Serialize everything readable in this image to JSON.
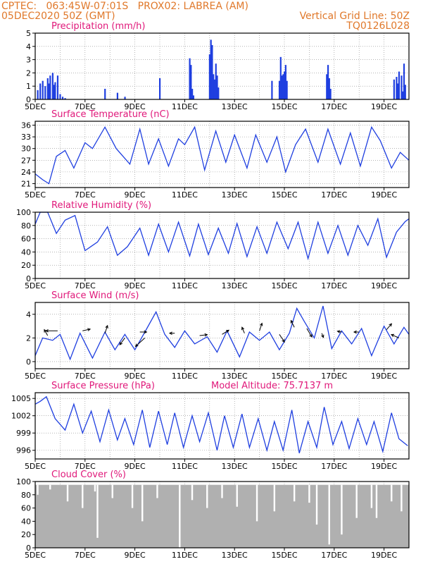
{
  "header": {
    "line1_left": "CPTEC:   063:45W-07:01S   PROX02: LABREA (AM)",
    "line2_left": "05DEC2020 50Z (GMT)",
    "line2_right": "Vertical Grid Line: 50Z",
    "line3_right": "TQ0126L028",
    "color": "#e0782a"
  },
  "colors": {
    "title": "#e0187a",
    "line": "#1f3fe0",
    "bar": "#1f3fe0",
    "cloud": "#b0b0b0",
    "grid": "#888888"
  },
  "x_tick_labels": [
    "5DEC",
    "7DEC",
    "9DEC",
    "11DEC",
    "13DEC",
    "15DEC",
    "17DEC",
    "19DEC"
  ],
  "x_range_days": [
    5,
    20
  ],
  "chart_data": [
    {
      "type": "bar",
      "title": "Precipitation (mm/h)",
      "ylim": [
        0,
        5
      ],
      "yticks": [
        "0",
        "1",
        "2",
        "3",
        "4",
        "5"
      ],
      "x": [
        5.1,
        5.2,
        5.3,
        5.4,
        5.5,
        5.55,
        5.6,
        5.7,
        5.75,
        5.8,
        5.9,
        6.0,
        6.1,
        6.2,
        7.8,
        8.3,
        8.6,
        10.0,
        11.2,
        11.25,
        11.3,
        11.35,
        12.0,
        12.05,
        12.1,
        12.15,
        12.2,
        12.25,
        12.3,
        12.35,
        14.5,
        14.8,
        14.85,
        14.9,
        14.95,
        15.0,
        15.05,
        15.1,
        16.7,
        16.75,
        16.8,
        16.85,
        19.4,
        19.5,
        19.55,
        19.6,
        19.7,
        19.75,
        19.8,
        19.85
      ],
      "values": [
        0.7,
        1.2,
        1.4,
        1.0,
        1.6,
        1.2,
        1.8,
        2.0,
        1.1,
        1.3,
        1.8,
        0.4,
        0.2,
        0.1,
        0.8,
        0.5,
        0.2,
        1.6,
        3.1,
        2.6,
        0.8,
        0.3,
        3.4,
        4.5,
        4.1,
        1.9,
        1.5,
        2.7,
        1.8,
        0.9,
        1.4,
        1.4,
        3.2,
        1.8,
        1.9,
        2.1,
        2.6,
        1.4,
        1.9,
        2.6,
        1.6,
        0.8,
        1.5,
        1.7,
        1.2,
        2.1,
        1.8,
        0.6,
        2.7,
        1.1
      ]
    },
    {
      "type": "line",
      "title": "Surface Temperature (nC)",
      "ylim": [
        20,
        37
      ],
      "yticks": [
        "21",
        "24",
        "27",
        "30",
        "33",
        "36"
      ],
      "x": [
        5.0,
        5.3,
        5.55,
        5.85,
        6.2,
        6.55,
        7.0,
        7.3,
        7.8,
        8.25,
        8.8,
        9.2,
        9.55,
        9.95,
        10.35,
        10.75,
        11.0,
        11.4,
        11.8,
        12.25,
        12.65,
        13.0,
        13.5,
        13.85,
        14.3,
        14.7,
        15.05,
        15.45,
        15.85,
        16.35,
        16.75,
        17.25,
        17.65,
        18.05,
        18.5,
        18.85,
        19.3,
        19.65,
        20.0
      ],
      "values": [
        23.5,
        22.0,
        21.0,
        28.0,
        29.5,
        25.0,
        31.5,
        30.0,
        35.5,
        30.0,
        26.0,
        35.0,
        26.0,
        32.5,
        25.5,
        32.5,
        31.0,
        35.5,
        24.5,
        34.5,
        26.5,
        33.5,
        25.0,
        33.5,
        26.5,
        33.0,
        24.0,
        31.0,
        35.0,
        26.5,
        35.0,
        26.0,
        34.0,
        25.5,
        35.5,
        32.0,
        25.0,
        29.0,
        27.0
      ]
    },
    {
      "type": "line",
      "title": "Relative Humidity (%)",
      "ylim": [
        0,
        100
      ],
      "yticks": [
        "0",
        "20",
        "40",
        "60",
        "80",
        "100"
      ],
      "x": [
        5.0,
        5.2,
        5.5,
        5.85,
        6.2,
        6.6,
        7.0,
        7.5,
        7.9,
        8.3,
        8.7,
        9.2,
        9.55,
        9.95,
        10.35,
        10.75,
        11.2,
        11.55,
        11.95,
        12.35,
        12.75,
        13.1,
        13.5,
        13.9,
        14.3,
        14.7,
        15.15,
        15.55,
        15.95,
        16.35,
        16.75,
        17.15,
        17.55,
        17.95,
        18.35,
        18.75,
        19.1,
        19.5,
        19.85,
        20.0
      ],
      "values": [
        82,
        100,
        100,
        68,
        88,
        95,
        42,
        55,
        78,
        35,
        48,
        76,
        35,
        82,
        40,
        85,
        34,
        82,
        36,
        76,
        38,
        83,
        33,
        78,
        38,
        85,
        45,
        85,
        30,
        85,
        38,
        80,
        35,
        80,
        50,
        90,
        32,
        70,
        86,
        90
      ]
    },
    {
      "type": "line",
      "title": "Surface Wind (m/s)",
      "ylim": [
        -0.6,
        5
      ],
      "yticks": [
        "0",
        "2",
        "4"
      ],
      "x": [
        5.0,
        5.3,
        5.7,
        6.0,
        6.4,
        6.8,
        7.3,
        7.8,
        8.2,
        8.6,
        9.0,
        9.4,
        9.85,
        10.2,
        10.6,
        11.0,
        11.4,
        11.9,
        12.3,
        12.7,
        13.2,
        13.6,
        14.0,
        14.4,
        14.8,
        15.2,
        15.5,
        15.8,
        16.2,
        16.55,
        16.9,
        17.3,
        17.7,
        18.1,
        18.5,
        19.0,
        19.4,
        19.8,
        20.0
      ],
      "values": [
        0.5,
        2.0,
        1.8,
        2.3,
        0.2,
        2.4,
        0.3,
        2.5,
        1.0,
        2.3,
        1.0,
        2.5,
        4.2,
        2.3,
        1.2,
        2.6,
        1.5,
        2.1,
        0.8,
        2.6,
        0.4,
        2.5,
        1.8,
        2.5,
        1.0,
        2.4,
        4.5,
        3.4,
        2.0,
        4.7,
        1.1,
        2.6,
        1.5,
        2.8,
        0.5,
        3.0,
        1.5,
        2.9,
        2.3
      ],
      "wind_vectors": [
        {
          "x": 5.5,
          "y": 2.2,
          "u": -0.4,
          "v": 0.7
        },
        {
          "x": 5.9,
          "y": 2.6,
          "u": -1.4,
          "v": 0.0
        },
        {
          "x": 6.9,
          "y": 2.6,
          "u": 0.9,
          "v": 0.2
        },
        {
          "x": 7.8,
          "y": 2.4,
          "u": 0.3,
          "v": 0.9
        },
        {
          "x": 8.6,
          "y": 2.0,
          "u": -0.6,
          "v": -0.8
        },
        {
          "x": 9.2,
          "y": 2.5,
          "u": 0.8,
          "v": 0.0
        },
        {
          "x": 9.4,
          "y": 2.0,
          "u": -1.1,
          "v": -1.0
        },
        {
          "x": 10.6,
          "y": 2.4,
          "u": -0.6,
          "v": 0.0
        },
        {
          "x": 11.6,
          "y": 2.2,
          "u": 0.9,
          "v": 0.1
        },
        {
          "x": 12.5,
          "y": 2.3,
          "u": 0.8,
          "v": 0.5
        },
        {
          "x": 13.4,
          "y": 2.4,
          "u": -0.3,
          "v": 0.7
        },
        {
          "x": 14.0,
          "y": 2.6,
          "u": 0.3,
          "v": 0.9
        },
        {
          "x": 14.8,
          "y": 2.3,
          "u": 0.6,
          "v": -0.9
        },
        {
          "x": 15.4,
          "y": 2.9,
          "u": -0.4,
          "v": 0.8
        },
        {
          "x": 15.9,
          "y": 2.8,
          "u": 0.6,
          "v": -1.0
        },
        {
          "x": 16.5,
          "y": 2.4,
          "u": 0.2,
          "v": -0.5
        },
        {
          "x": 17.3,
          "y": 2.5,
          "u": -0.5,
          "v": 0.1
        },
        {
          "x": 18.0,
          "y": 2.5,
          "u": -0.6,
          "v": 0.0
        },
        {
          "x": 19.1,
          "y": 2.7,
          "u": 0.6,
          "v": 0.7
        },
        {
          "x": 19.6,
          "y": 2.0,
          "u": -0.9,
          "v": 0.4
        }
      ]
    },
    {
      "type": "line",
      "title": "Surface Pressure (hPa)",
      "annotation": "Model Altitude: 75.7137 m",
      "ylim": [
        994.5,
        1006
      ],
      "yticks": [
        "996",
        "999",
        "1002",
        "1005"
      ],
      "x": [
        5.0,
        5.2,
        5.45,
        5.8,
        6.2,
        6.55,
        6.9,
        7.25,
        7.6,
        7.95,
        8.3,
        8.6,
        8.95,
        9.3,
        9.6,
        9.95,
        10.3,
        10.6,
        10.95,
        11.3,
        11.6,
        11.95,
        12.3,
        12.6,
        12.95,
        13.3,
        13.6,
        13.95,
        14.3,
        14.6,
        14.95,
        15.3,
        15.6,
        15.95,
        16.3,
        16.6,
        16.95,
        17.3,
        17.6,
        17.95,
        18.3,
        18.6,
        18.95,
        19.3,
        19.6,
        19.95
      ],
      "values": [
        1004.0,
        1004.5,
        1005.3,
        1001.5,
        999.5,
        1004.0,
        999.0,
        1002.8,
        997.5,
        1003.0,
        997.8,
        1001.5,
        997.0,
        1003.0,
        996.5,
        1002.8,
        997.0,
        1002.5,
        996.5,
        1002.0,
        997.5,
        1002.5,
        996.0,
        1002.0,
        996.5,
        1002.3,
        996.5,
        1001.5,
        996.0,
        1001.0,
        996.0,
        1003.0,
        995.5,
        1001.0,
        996.5,
        1003.5,
        997.0,
        1001.0,
        996.3,
        1001.5,
        997.0,
        1001.0,
        995.8,
        1002.5,
        998.0,
        996.8
      ]
    },
    {
      "type": "bar",
      "title": "Cloud Cover (%)",
      "ylim": [
        0,
        100
      ],
      "yticks": [
        "0",
        "20",
        "40",
        "60",
        "80",
        "100"
      ],
      "base_value": 95,
      "dips": [
        {
          "x": 5.1,
          "value": 80
        },
        {
          "x": 5.6,
          "value": 88
        },
        {
          "x": 6.3,
          "value": 70
        },
        {
          "x": 6.9,
          "value": 60
        },
        {
          "x": 7.4,
          "value": 85
        },
        {
          "x": 7.5,
          "value": 15
        },
        {
          "x": 8.1,
          "value": 75
        },
        {
          "x": 8.9,
          "value": 60
        },
        {
          "x": 9.3,
          "value": 40
        },
        {
          "x": 9.9,
          "value": 75
        },
        {
          "x": 10.8,
          "value": 0
        },
        {
          "x": 11.3,
          "value": 72
        },
        {
          "x": 11.9,
          "value": 60
        },
        {
          "x": 12.5,
          "value": 75
        },
        {
          "x": 13.1,
          "value": 62
        },
        {
          "x": 13.9,
          "value": 40
        },
        {
          "x": 14.6,
          "value": 55
        },
        {
          "x": 15.4,
          "value": 70
        },
        {
          "x": 16.0,
          "value": 68
        },
        {
          "x": 16.3,
          "value": 35
        },
        {
          "x": 16.8,
          "value": 5
        },
        {
          "x": 17.3,
          "value": 20
        },
        {
          "x": 17.9,
          "value": 45
        },
        {
          "x": 18.5,
          "value": 60
        },
        {
          "x": 18.7,
          "value": 45
        },
        {
          "x": 19.3,
          "value": 70
        },
        {
          "x": 19.7,
          "value": 55
        }
      ]
    }
  ]
}
